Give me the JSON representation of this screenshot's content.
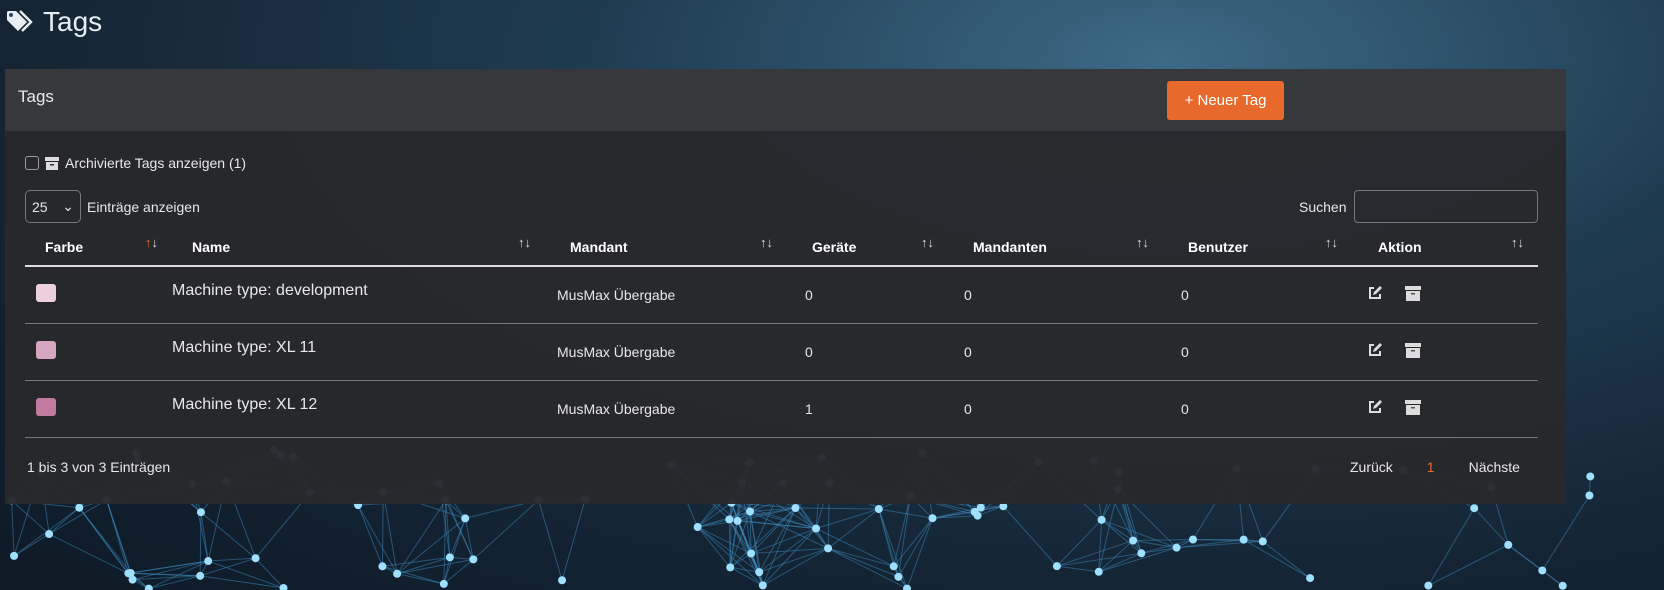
{
  "page_title": "Tags",
  "card": {
    "title": "Tags",
    "new_button": "+ Neuer Tag",
    "accent": "#e8692c"
  },
  "archived": {
    "label": "Archivierte Tags anzeigen (1)",
    "checked": false
  },
  "length": {
    "value": "25",
    "label": "Einträge anzeigen"
  },
  "search": {
    "label": "Suchen",
    "value": ""
  },
  "columns": [
    "Farbe",
    "Name",
    "Mandant",
    "Geräte",
    "Mandanten",
    "Benutzer",
    "Aktion"
  ],
  "rows": [
    {
      "color": "#ecd1dc",
      "name": "Machine type: development",
      "mandant": "MusMax Übergabe",
      "geraete": "0",
      "mandanten": "0",
      "benutzer": "0"
    },
    {
      "color": "#d6a6c0",
      "name": "Machine type: XL 11",
      "mandant": "MusMax Übergabe",
      "geraete": "0",
      "mandanten": "0",
      "benutzer": "0"
    },
    {
      "color": "#c07a9f",
      "name": "Machine type: XL 12",
      "mandant": "MusMax Übergabe",
      "geraete": "1",
      "mandanten": "0",
      "benutzer": "0"
    }
  ],
  "info": "1 bis 3 von 3 Einträgen",
  "pagination": {
    "prev": "Zurück",
    "current": "1",
    "next": "Nächste"
  }
}
